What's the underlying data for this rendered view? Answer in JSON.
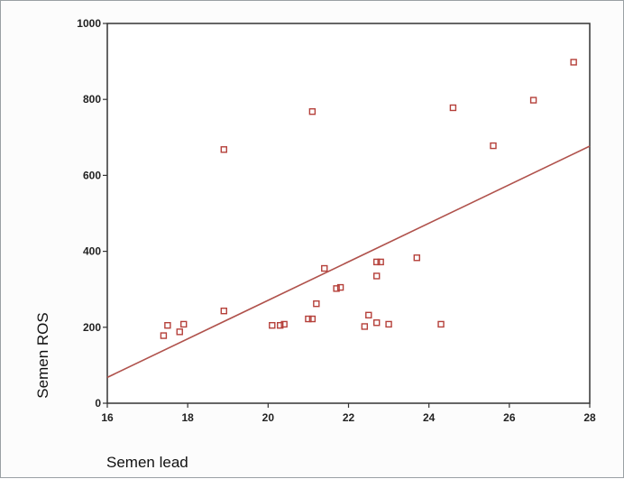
{
  "chart_data": {
    "type": "scatter",
    "title": "",
    "xlabel": "Semen lead",
    "ylabel": "Semen ROS",
    "xlim": [
      16,
      28
    ],
    "ylim": [
      0,
      1000
    ],
    "x_ticks": [
      16,
      18,
      20,
      22,
      24,
      26,
      28
    ],
    "y_ticks": [
      0,
      200,
      400,
      600,
      800,
      1000
    ],
    "grid": false,
    "legend": "none",
    "marker_color": "#b5403a",
    "line_color": "#b0524c",
    "series": [
      {
        "points": [
          {
            "x": 17.4,
            "y": 178
          },
          {
            "x": 17.5,
            "y": 205
          },
          {
            "x": 17.8,
            "y": 188
          },
          {
            "x": 17.9,
            "y": 208
          },
          {
            "x": 18.9,
            "y": 668
          },
          {
            "x": 18.9,
            "y": 243
          },
          {
            "x": 20.1,
            "y": 205
          },
          {
            "x": 20.3,
            "y": 205
          },
          {
            "x": 20.4,
            "y": 208
          },
          {
            "x": 21.0,
            "y": 222
          },
          {
            "x": 21.1,
            "y": 222
          },
          {
            "x": 21.1,
            "y": 768
          },
          {
            "x": 21.2,
            "y": 262
          },
          {
            "x": 21.4,
            "y": 355
          },
          {
            "x": 21.7,
            "y": 302
          },
          {
            "x": 21.8,
            "y": 305
          },
          {
            "x": 22.4,
            "y": 202
          },
          {
            "x": 22.5,
            "y": 232
          },
          {
            "x": 22.7,
            "y": 212
          },
          {
            "x": 22.7,
            "y": 335
          },
          {
            "x": 22.7,
            "y": 372
          },
          {
            "x": 22.8,
            "y": 372
          },
          {
            "x": 23.0,
            "y": 208
          },
          {
            "x": 23.7,
            "y": 383
          },
          {
            "x": 24.3,
            "y": 208
          },
          {
            "x": 24.6,
            "y": 778
          },
          {
            "x": 25.6,
            "y": 678
          },
          {
            "x": 26.6,
            "y": 798
          },
          {
            "x": 27.6,
            "y": 898
          }
        ]
      }
    ],
    "fit_line": {
      "x": [
        16,
        28
      ],
      "y": [
        68,
        677
      ]
    }
  }
}
